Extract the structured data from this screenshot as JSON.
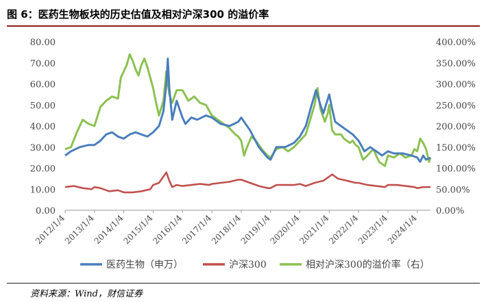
{
  "title": "图 6：医药生物板块的历史估值及相对沪深300 的溢价率",
  "source": "资料来源：Wind，财信证券",
  "chart_data": {
    "type": "line",
    "x_labels": [
      "2012/1/4",
      "2013/1/4",
      "2014/1/4",
      "2015/1/4",
      "2016/1/4",
      "2017/1/4",
      "2018/1/4",
      "2019/1/4",
      "2020/1/4",
      "2021/1/4",
      "2022/1/4",
      "2023/1/4",
      "2024/1/4"
    ],
    "x_range": [
      2012.0,
      2024.45
    ],
    "y_left": {
      "range": [
        0,
        80
      ],
      "ticks": [
        "0.00",
        "10.00",
        "20.00",
        "30.00",
        "40.00",
        "50.00",
        "60.00",
        "70.00",
        "80.00"
      ]
    },
    "y_right": {
      "range": [
        0,
        400
      ],
      "ticks": [
        "0.00%",
        "50.00%",
        "100.00%",
        "150.00%",
        "200.00%",
        "250.00%",
        "300.00%",
        "350.00%",
        "400.00%"
      ]
    },
    "series": [
      {
        "name": "医药生物（申万）",
        "axis": "left",
        "color": "#4a7ebb",
        "points": [
          [
            2012.0,
            26
          ],
          [
            2012.2,
            28
          ],
          [
            2012.5,
            30
          ],
          [
            2012.8,
            31
          ],
          [
            2013.0,
            31
          ],
          [
            2013.2,
            33
          ],
          [
            2013.4,
            36
          ],
          [
            2013.6,
            37
          ],
          [
            2013.8,
            35
          ],
          [
            2014.0,
            34
          ],
          [
            2014.2,
            36
          ],
          [
            2014.4,
            37
          ],
          [
            2014.6,
            36
          ],
          [
            2014.8,
            35
          ],
          [
            2015.0,
            37
          ],
          [
            2015.2,
            40
          ],
          [
            2015.35,
            47
          ],
          [
            2015.45,
            60
          ],
          [
            2015.5,
            72
          ],
          [
            2015.55,
            58
          ],
          [
            2015.65,
            43
          ],
          [
            2015.8,
            52
          ],
          [
            2016.0,
            44
          ],
          [
            2016.1,
            41
          ],
          [
            2016.3,
            44
          ],
          [
            2016.5,
            43
          ],
          [
            2016.8,
            45
          ],
          [
            2017.0,
            44
          ],
          [
            2017.3,
            41
          ],
          [
            2017.6,
            40
          ],
          [
            2017.9,
            42
          ],
          [
            2018.0,
            44
          ],
          [
            2018.3,
            38
          ],
          [
            2018.6,
            30
          ],
          [
            2018.9,
            25
          ],
          [
            2019.0,
            24
          ],
          [
            2019.2,
            30
          ],
          [
            2019.5,
            30
          ],
          [
            2019.8,
            32
          ],
          [
            2020.0,
            35
          ],
          [
            2020.2,
            40
          ],
          [
            2020.4,
            50
          ],
          [
            2020.55,
            57
          ],
          [
            2020.7,
            50
          ],
          [
            2020.8,
            46
          ],
          [
            2021.0,
            55
          ],
          [
            2021.1,
            48
          ],
          [
            2021.2,
            42
          ],
          [
            2021.4,
            40
          ],
          [
            2021.6,
            38
          ],
          [
            2021.8,
            36
          ],
          [
            2022.0,
            33
          ],
          [
            2022.2,
            28
          ],
          [
            2022.4,
            30
          ],
          [
            2022.6,
            28
          ],
          [
            2022.8,
            26
          ],
          [
            2023.0,
            28
          ],
          [
            2023.2,
            27
          ],
          [
            2023.5,
            27
          ],
          [
            2023.8,
            26
          ],
          [
            2024.0,
            25
          ],
          [
            2024.1,
            23
          ],
          [
            2024.2,
            26
          ],
          [
            2024.3,
            24
          ],
          [
            2024.45,
            25
          ]
        ]
      },
      {
        "name": "沪深300",
        "axis": "left",
        "color": "#c0504d",
        "points": [
          [
            2012.0,
            11
          ],
          [
            2012.3,
            11.5
          ],
          [
            2012.6,
            10.5
          ],
          [
            2012.9,
            10
          ],
          [
            2013.0,
            11
          ],
          [
            2013.2,
            10.5
          ],
          [
            2013.5,
            9
          ],
          [
            2013.8,
            9.5
          ],
          [
            2014.0,
            8.5
          ],
          [
            2014.3,
            8.5
          ],
          [
            2014.6,
            9
          ],
          [
            2014.9,
            10
          ],
          [
            2015.0,
            12
          ],
          [
            2015.2,
            13
          ],
          [
            2015.35,
            16
          ],
          [
            2015.45,
            18
          ],
          [
            2015.55,
            14
          ],
          [
            2015.65,
            11
          ],
          [
            2015.8,
            12
          ],
          [
            2016.0,
            11.5
          ],
          [
            2016.3,
            12
          ],
          [
            2016.6,
            12.5
          ],
          [
            2016.9,
            12
          ],
          [
            2017.0,
            12.5
          ],
          [
            2017.3,
            13
          ],
          [
            2017.6,
            13.5
          ],
          [
            2017.9,
            14.5
          ],
          [
            2018.0,
            14.5
          ],
          [
            2018.3,
            13
          ],
          [
            2018.6,
            11.5
          ],
          [
            2018.9,
            10.5
          ],
          [
            2019.0,
            10.5
          ],
          [
            2019.2,
            12
          ],
          [
            2019.5,
            12
          ],
          [
            2019.8,
            12
          ],
          [
            2020.0,
            12.5
          ],
          [
            2020.2,
            11.5
          ],
          [
            2020.5,
            13
          ],
          [
            2020.8,
            14
          ],
          [
            2021.0,
            16
          ],
          [
            2021.1,
            17
          ],
          [
            2021.3,
            15
          ],
          [
            2021.6,
            14
          ],
          [
            2021.9,
            13
          ],
          [
            2022.0,
            13
          ],
          [
            2022.3,
            12
          ],
          [
            2022.6,
            11.5
          ],
          [
            2022.9,
            11
          ],
          [
            2023.0,
            12
          ],
          [
            2023.3,
            12
          ],
          [
            2023.6,
            11.5
          ],
          [
            2023.9,
            11
          ],
          [
            2024.0,
            10.5
          ],
          [
            2024.2,
            11
          ],
          [
            2024.45,
            11
          ]
        ]
      },
      {
        "name": "相对沪深300的溢价率（右）",
        "axis": "right",
        "color": "#8cc152",
        "points": [
          [
            2012.0,
            145
          ],
          [
            2012.2,
            150
          ],
          [
            2012.4,
            185
          ],
          [
            2012.6,
            215
          ],
          [
            2012.8,
            205
          ],
          [
            2013.0,
            200
          ],
          [
            2013.2,
            245
          ],
          [
            2013.4,
            260
          ],
          [
            2013.6,
            270
          ],
          [
            2013.8,
            265
          ],
          [
            2013.9,
            315
          ],
          [
            2014.0,
            330
          ],
          [
            2014.1,
            345
          ],
          [
            2014.2,
            370
          ],
          [
            2014.3,
            355
          ],
          [
            2014.4,
            335
          ],
          [
            2014.5,
            320
          ],
          [
            2014.6,
            345
          ],
          [
            2014.7,
            360
          ],
          [
            2014.8,
            340
          ],
          [
            2014.9,
            315
          ],
          [
            2015.0,
            290
          ],
          [
            2015.1,
            255
          ],
          [
            2015.2,
            225
          ],
          [
            2015.35,
            260
          ],
          [
            2015.45,
            330
          ],
          [
            2015.55,
            275
          ],
          [
            2015.65,
            255
          ],
          [
            2015.8,
            285
          ],
          [
            2016.0,
            285
          ],
          [
            2016.2,
            260
          ],
          [
            2016.4,
            270
          ],
          [
            2016.6,
            255
          ],
          [
            2016.8,
            250
          ],
          [
            2017.0,
            225
          ],
          [
            2017.2,
            215
          ],
          [
            2017.4,
            205
          ],
          [
            2017.6,
            195
          ],
          [
            2017.8,
            180
          ],
          [
            2017.9,
            175
          ],
          [
            2018.0,
            165
          ],
          [
            2018.1,
            130
          ],
          [
            2018.2,
            150
          ],
          [
            2018.35,
            175
          ],
          [
            2018.5,
            165
          ],
          [
            2018.7,
            145
          ],
          [
            2018.9,
            130
          ],
          [
            2019.0,
            125
          ],
          [
            2019.2,
            145
          ],
          [
            2019.4,
            150
          ],
          [
            2019.6,
            140
          ],
          [
            2019.8,
            150
          ],
          [
            2020.0,
            165
          ],
          [
            2020.2,
            180
          ],
          [
            2020.35,
            215
          ],
          [
            2020.5,
            250
          ],
          [
            2020.6,
            290
          ],
          [
            2020.7,
            240
          ],
          [
            2020.85,
            210
          ],
          [
            2020.95,
            230
          ],
          [
            2021.0,
            250
          ],
          [
            2021.1,
            190
          ],
          [
            2021.2,
            180
          ],
          [
            2021.4,
            180
          ],
          [
            2021.5,
            170
          ],
          [
            2021.7,
            160
          ],
          [
            2021.8,
            165
          ],
          [
            2021.9,
            155
          ],
          [
            2022.0,
            150
          ],
          [
            2022.15,
            120
          ],
          [
            2022.3,
            130
          ],
          [
            2022.5,
            145
          ],
          [
            2022.7,
            115
          ],
          [
            2022.9,
            105
          ],
          [
            2023.0,
            130
          ],
          [
            2023.2,
            125
          ],
          [
            2023.4,
            135
          ],
          [
            2023.6,
            125
          ],
          [
            2023.8,
            130
          ],
          [
            2023.9,
            145
          ],
          [
            2024.0,
            140
          ],
          [
            2024.1,
            170
          ],
          [
            2024.2,
            160
          ],
          [
            2024.3,
            145
          ],
          [
            2024.4,
            115
          ],
          [
            2024.45,
            125
          ]
        ]
      }
    ],
    "legend_position": "bottom",
    "grid": false
  }
}
